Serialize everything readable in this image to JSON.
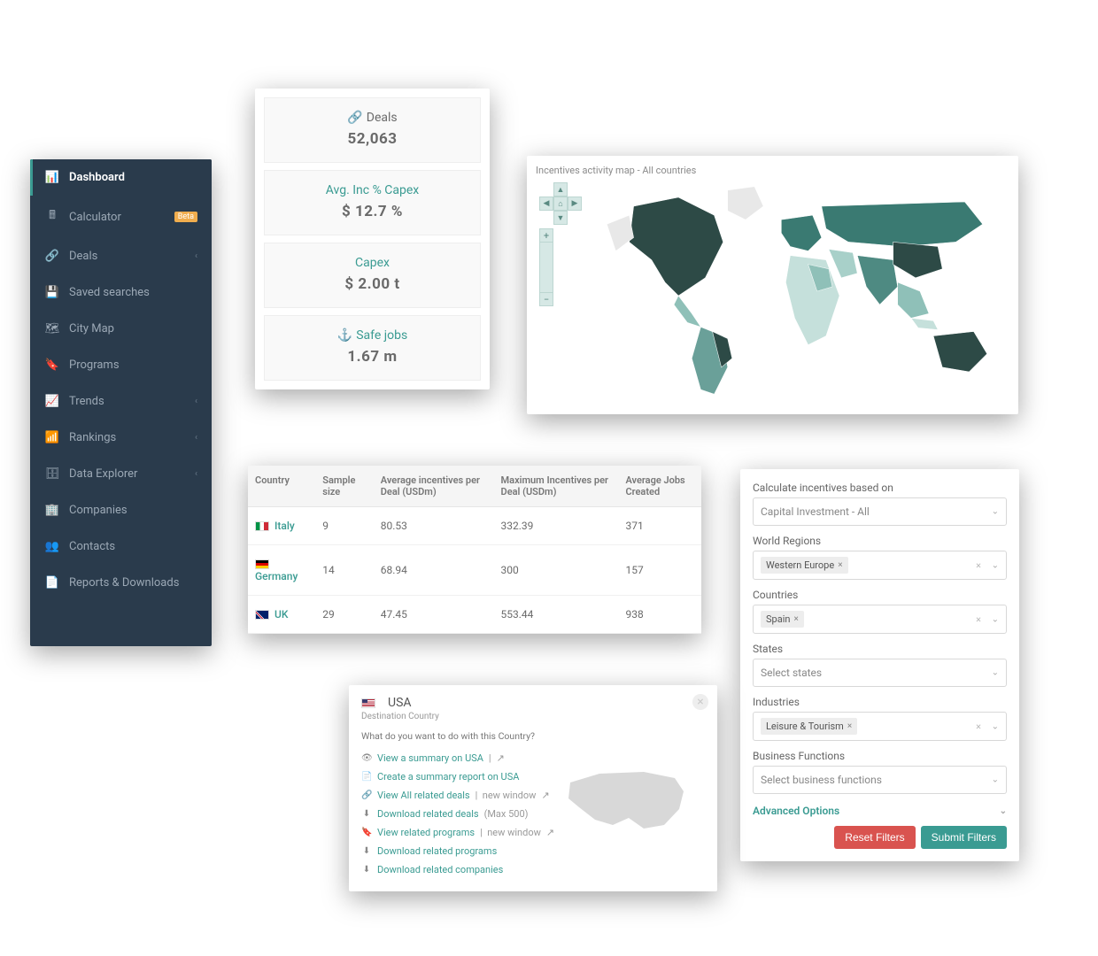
{
  "colors": {
    "sidebar_bg": "#2a3b4c",
    "sidebar_text": "#9ba8b5",
    "accent": "#3a9b92",
    "beta_bg": "#f0ad4e",
    "danger": "#d9534f",
    "panel_bg": "#ffffff",
    "stat_bg": "#f9f9f9",
    "muted_text": "#6a6a6a",
    "border": "#e5e5e5",
    "map_dark": "#2d4a46",
    "map_mid": "#6aa099",
    "map_light": "#c5e0db",
    "map_none": "#e8e8e8"
  },
  "sidebar": {
    "items": [
      {
        "label": "Dashboard",
        "icon": "gauge",
        "active": true,
        "chevron": false
      },
      {
        "label": "Calculator",
        "icon": "calculator",
        "badge": "Beta",
        "chevron": false
      },
      {
        "label": "Deals",
        "icon": "link",
        "chevron": true
      },
      {
        "label": "Saved searches",
        "icon": "save",
        "chevron": false
      },
      {
        "label": "City Map",
        "icon": "map",
        "chevron": false
      },
      {
        "label": "Programs",
        "icon": "bookmark",
        "chevron": false
      },
      {
        "label": "Trends",
        "icon": "chart-line",
        "chevron": true
      },
      {
        "label": "Rankings",
        "icon": "chart-bar",
        "chevron": true
      },
      {
        "label": "Data Explorer",
        "icon": "database",
        "chevron": true
      },
      {
        "label": "Companies",
        "icon": "building",
        "chevron": false
      },
      {
        "label": "Contacts",
        "icon": "users",
        "chevron": false
      },
      {
        "label": "Reports & Downloads",
        "icon": "file",
        "chevron": false
      }
    ]
  },
  "stats": [
    {
      "title": "Deals",
      "value": "52,063",
      "style": "dark",
      "icon": "link"
    },
    {
      "title": "Avg. Inc % Capex",
      "value": "$ 12.7 %",
      "style": "accent"
    },
    {
      "title": "Capex",
      "value": "$ 2.00 t",
      "style": "accent"
    },
    {
      "title": "Safe jobs",
      "value": "1.67 m",
      "style": "accent",
      "icon": "anchor"
    }
  ],
  "map": {
    "title": "Incentives activity map  -  All countries",
    "type": "choropleth-world",
    "background_color": "#ffffff",
    "legend": null
  },
  "table": {
    "columns": [
      "Country",
      "Sample size",
      "Average incentives per Deal (USDm)",
      "Maximum Incentives per Deal (USDm)",
      "Average Jobs Created"
    ],
    "rows": [
      {
        "flag": "it",
        "country": "Italy",
        "sample": "9",
        "avg_inc": "80.53",
        "max_inc": "332.39",
        "jobs": "371"
      },
      {
        "flag": "de",
        "country": "Germany",
        "sample": "14",
        "avg_inc": "68.94",
        "max_inc": "300",
        "jobs": "157"
      },
      {
        "flag": "gb",
        "country": "UK",
        "sample": "29",
        "avg_inc": "47.45",
        "max_inc": "553.44",
        "jobs": "938"
      }
    ]
  },
  "filters": {
    "heading": "Calculate incentives based on",
    "basis": {
      "value": "Capital Investment - All"
    },
    "world_regions": {
      "label": "World Regions",
      "chips": [
        "Western Europe"
      ]
    },
    "countries": {
      "label": "Countries",
      "chips": [
        "Spain"
      ]
    },
    "states": {
      "label": "States",
      "placeholder": "Select states"
    },
    "industries": {
      "label": "Industries",
      "chips": [
        "Leisure & Tourism"
      ]
    },
    "business_functions": {
      "label": "Business Functions",
      "placeholder": "Select business functions"
    },
    "advanced": "Advanced Options",
    "reset": "Reset Filters",
    "submit": "Submit Filters"
  },
  "popup": {
    "country": "USA",
    "subtitle": "Destination Country",
    "prompt": "What do you want to do with this Country?",
    "actions": [
      {
        "icon": "eye",
        "text": "View a summary on USA",
        "sep": true,
        "ext": true
      },
      {
        "icon": "file",
        "text": "Create a summary report on USA"
      },
      {
        "icon": "link",
        "text": "View All related deals",
        "sep": true,
        "suffix": "new window",
        "ext": true
      },
      {
        "icon": "download",
        "text": "Download related deals",
        "note": "(Max 500)"
      },
      {
        "icon": "bookmark",
        "text": "View related programs",
        "sep": true,
        "suffix": "new window",
        "ext": true
      },
      {
        "icon": "download",
        "text": "Download related programs"
      },
      {
        "icon": "download",
        "text": "Download related companies"
      }
    ]
  }
}
